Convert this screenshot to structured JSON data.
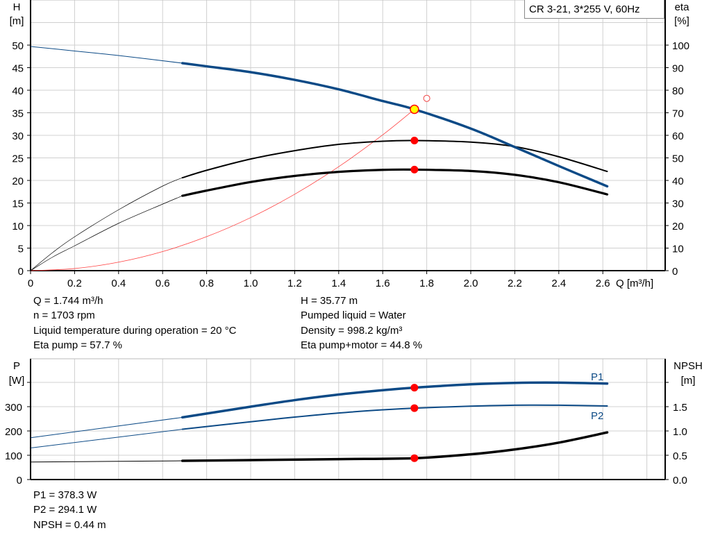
{
  "chart_data": [
    {
      "type": "line",
      "title": "CR 3-21, 3*255 V, 60Hz",
      "xlabel": "Q [m³/h]",
      "ylabel": "H",
      "ylabel_unit": "[m]",
      "y2label": "eta",
      "y2label_unit": "[%]",
      "xlim": [
        0,
        2.8
      ],
      "ylim": [
        0,
        60
      ],
      "y2lim": [
        0,
        120
      ],
      "x_ticks": [
        "0",
        "0.2",
        "0.4",
        "0.6",
        "0.8",
        "1.0",
        "1.2",
        "1.4",
        "1.6",
        "1.8",
        "2.0",
        "2.2",
        "2.4",
        "2.6"
      ],
      "y_ticks": [
        "0",
        "5",
        "10",
        "15",
        "20",
        "25",
        "30",
        "35",
        "40",
        "45",
        "50"
      ],
      "y2_ticks": [
        "0",
        "10",
        "20",
        "30",
        "40",
        "50",
        "60",
        "70",
        "80",
        "90",
        "100"
      ],
      "grid": true,
      "legend": "top-right",
      "operating_range": [
        0.69,
        2.62
      ],
      "series": [
        {
          "id": "H",
          "axis": "left",
          "color": "#0c4a86",
          "x": [
            0,
            0.2,
            0.4,
            0.69,
            0.8,
            1.0,
            1.2,
            1.4,
            1.6,
            1.744,
            2.0,
            2.2,
            2.4,
            2.62
          ],
          "y": [
            49.7,
            48.7,
            47.7,
            46.0,
            45.3,
            44.0,
            42.3,
            40.2,
            37.6,
            35.77,
            31.5,
            27.4,
            23.2,
            18.7
          ]
        },
        {
          "id": "eta-pump",
          "axis": "right",
          "color": "#000000",
          "x": [
            0,
            0.1,
            0.2,
            0.4,
            0.6,
            0.69,
            0.8,
            1.0,
            1.2,
            1.4,
            1.6,
            1.744,
            2.0,
            2.2,
            2.4,
            2.62
          ],
          "y": [
            0,
            8,
            15,
            27,
            37.5,
            41.2,
            44.5,
            49.5,
            53.2,
            56,
            57.4,
            57.7,
            57,
            55,
            50.5,
            44
          ]
        },
        {
          "id": "eta-pump-motor",
          "axis": "right",
          "color": "#000000",
          "x": [
            0,
            0.1,
            0.2,
            0.4,
            0.6,
            0.69,
            0.8,
            1.0,
            1.2,
            1.4,
            1.6,
            1.744,
            2.0,
            2.2,
            2.4,
            2.62
          ],
          "y": [
            0,
            6,
            11,
            21,
            29.5,
            33.2,
            35.5,
            39.3,
            42,
            43.8,
            44.7,
            44.8,
            44.2,
            42.5,
            39.2,
            33.8
          ]
        },
        {
          "id": "system-curve",
          "axis": "left",
          "color": "#ff4040",
          "x": [
            0,
            0.2,
            0.4,
            0.6,
            0.8,
            1.0,
            1.2,
            1.4,
            1.6,
            1.744
          ],
          "y": [
            0,
            0.47,
            1.88,
            4.23,
            7.53,
            11.76,
            16.93,
            23.05,
            30.1,
            35.77
          ]
        }
      ],
      "duty_point": {
        "Q": 1.744,
        "H": 35.77,
        "eta_pump": 57.7,
        "eta_pump_motor": 44.8
      },
      "requested_point": {
        "Q": 1.8,
        "H": 38.2
      }
    },
    {
      "type": "line",
      "ylabel": "P",
      "ylabel_unit": "[W]",
      "y2label": "NPSH",
      "y2label_unit": "[m]",
      "xlim": [
        0,
        2.8
      ],
      "ylim": [
        0,
        500
      ],
      "y2lim": [
        0,
        2.5
      ],
      "y_ticks": [
        "0",
        "100",
        "200",
        "300",
        ""
      ],
      "y2_ticks": [
        "0.0",
        "0.5",
        "1.0",
        "1.5",
        ""
      ],
      "grid": true,
      "series": [
        {
          "id": "P1",
          "name": "P1",
          "axis": "left",
          "color": "#0c4a86",
          "x": [
            0,
            0.69,
            1.0,
            1.2,
            1.4,
            1.6,
            1.744,
            2.0,
            2.2,
            2.4,
            2.62
          ],
          "y": [
            172,
            256,
            300,
            327,
            350,
            368,
            378.3,
            392,
            398,
            399,
            395
          ]
        },
        {
          "id": "P2",
          "name": "P2",
          "axis": "left",
          "color": "#0c4a86",
          "x": [
            0,
            0.69,
            1.0,
            1.2,
            1.4,
            1.6,
            1.744,
            2.0,
            2.2,
            2.4,
            2.62
          ],
          "y": [
            130,
            207,
            238,
            257,
            274,
            287,
            294.1,
            302,
            306,
            306,
            303
          ]
        },
        {
          "id": "NPSH",
          "axis": "right",
          "color": "#000000",
          "x": [
            0,
            0.69,
            1.0,
            1.4,
            1.744,
            2.0,
            2.2,
            2.4,
            2.62
          ],
          "y": [
            0.36,
            0.385,
            0.4,
            0.42,
            0.44,
            0.52,
            0.62,
            0.76,
            0.97
          ]
        }
      ],
      "duty_point": {
        "Q": 1.744,
        "P1": 378.3,
        "P2": 294.1,
        "NPSH": 0.44
      }
    }
  ],
  "info": {
    "q": "Q = 1.744 m³/h",
    "n": "n = 1703 rpm",
    "temp": "Liquid temperature during operation = 20 °C",
    "eta_pump": "Eta pump = 57.7 %",
    "h": "H = 35.77 m",
    "liquid": "Pumped liquid = Water",
    "density": "Density = 998.2 kg/m³",
    "eta_total": "Eta pump+motor = 44.8 %",
    "p1": "P1 = 378.3 W",
    "p2": "P2 = 294.1 W",
    "npsh": "NPSH = 0.44 m"
  },
  "colors": {
    "grid": "#d0d0d0",
    "duty_fill": "#ffff00",
    "marker": "#ff0000",
    "blue": "#0c4a86"
  }
}
